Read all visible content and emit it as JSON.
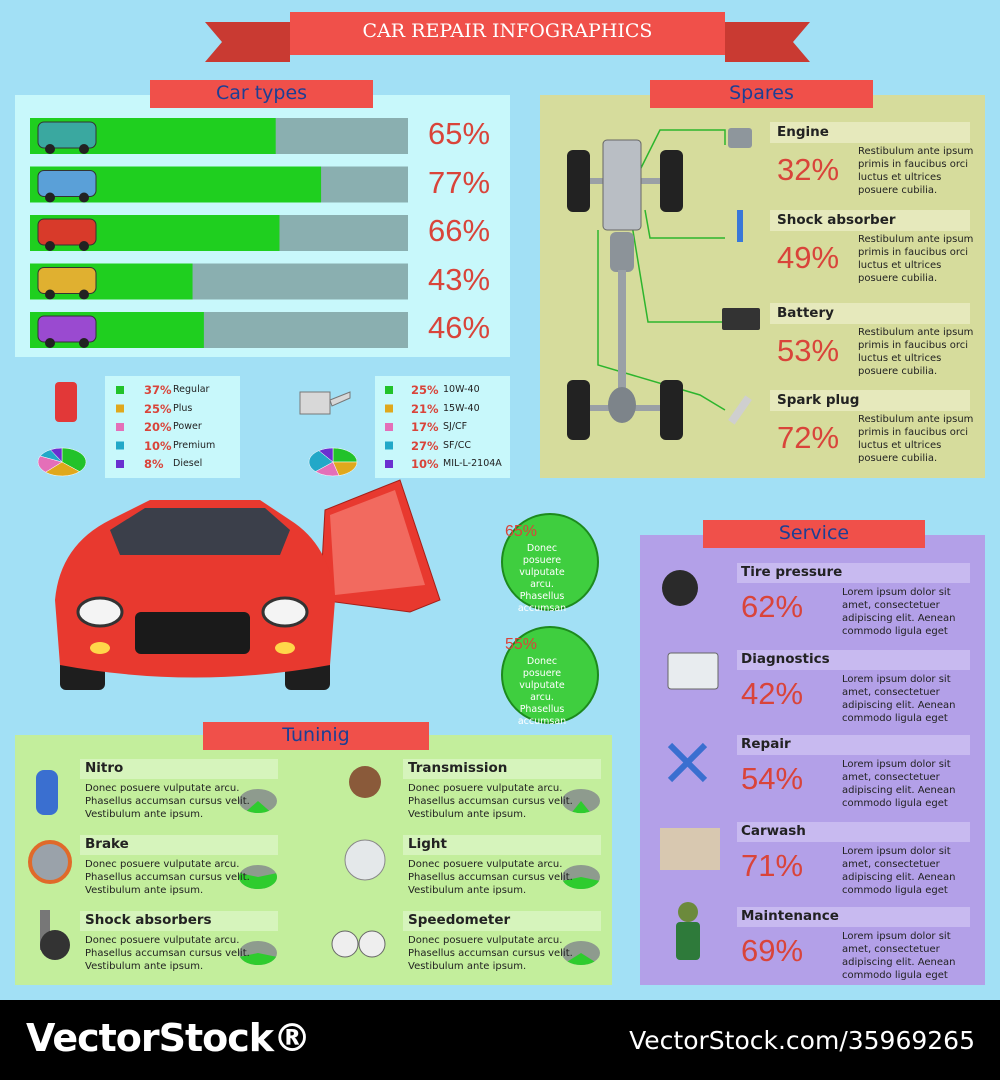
{
  "title": "CAR REPAIR INFOGRAPHICS",
  "car_types": {
    "heading": "Car types",
    "bar_color": "#1fcf1f",
    "track_color": "#8aafb0",
    "bars": [
      {
        "value": 65,
        "label": "65%"
      },
      {
        "value": 77,
        "label": "77%"
      },
      {
        "value": 66,
        "label": "66%"
      },
      {
        "value": 43,
        "label": "43%"
      },
      {
        "value": 46,
        "label": "46%"
      }
    ]
  },
  "fuel": {
    "items": [
      {
        "value": 37,
        "label": "37%",
        "name": "Regular",
        "color": "#22c22a"
      },
      {
        "value": 25,
        "label": "25%",
        "name": "Plus",
        "color": "#e0a81c"
      },
      {
        "value": 20,
        "label": "20%",
        "name": "Power",
        "color": "#e46fb8"
      },
      {
        "value": 10,
        "label": "10%",
        "name": "Premium",
        "color": "#22a8c8"
      },
      {
        "value": 8,
        "label": "8%",
        "name": "Diesel",
        "color": "#6a2fd0"
      }
    ]
  },
  "oil": {
    "items": [
      {
        "value": 25,
        "label": "25%",
        "name": "10W-40",
        "color": "#22c22a"
      },
      {
        "value": 21,
        "label": "21%",
        "name": "15W-40",
        "color": "#e0a81c"
      },
      {
        "value": 17,
        "label": "17%",
        "name": "SJ/CF",
        "color": "#e46fb8"
      },
      {
        "value": 27,
        "label": "27%",
        "name": "SF/CC",
        "color": "#22a8c8"
      },
      {
        "value": 10,
        "label": "10%",
        "name": "MIL-L-2104A",
        "color": "#6a2fd0"
      }
    ]
  },
  "spares": {
    "heading": "Spares",
    "items": [
      {
        "name": "Engine",
        "percent": "32%",
        "text": "Restibulum ante ipsum primis in faucibus orci luctus et ultrices posuere cubilia."
      },
      {
        "name": "Shock absorber",
        "percent": "49%",
        "text": "Restibulum ante ipsum primis in faucibus orci luctus et ultrices posuere cubilia."
      },
      {
        "name": "Battery",
        "percent": "53%",
        "text": "Restibulum ante ipsum primis in faucibus orci luctus et ultrices posuere cubilia."
      },
      {
        "name": "Spark plug",
        "percent": "72%",
        "text": "Restibulum ante ipsum primis in faucibus orci luctus et ultrices posuere cubilia."
      }
    ]
  },
  "callouts": [
    {
      "percent": "65%",
      "text": "Donec posuere vulputate arcu. Phasellus accumsan"
    },
    {
      "percent": "55%",
      "text": "Donec posuere vulputate arcu. Phasellus accumsan"
    }
  ],
  "service": {
    "heading": "Service",
    "items": [
      {
        "name": "Tire pressure",
        "percent": "62%",
        "text": "Lorem ipsum dolor sit amet, consectetuer adipiscing elit. Aenean commodo ligula eget"
      },
      {
        "name": "Diagnostics",
        "percent": "42%",
        "text": "Lorem ipsum dolor sit amet, consectetuer adipiscing elit. Aenean commodo ligula eget"
      },
      {
        "name": "Repair",
        "percent": "54%",
        "text": "Lorem ipsum dolor sit amet, consectetuer adipiscing elit. Aenean commodo ligula eget"
      },
      {
        "name": "Carwash",
        "percent": "71%",
        "text": "Lorem ipsum dolor sit amet, consectetuer adipiscing elit. Aenean commodo ligula eget"
      },
      {
        "name": "Maintenance",
        "percent": "69%",
        "text": "Lorem ipsum dolor sit amet, consectetuer adipiscing elit. Aenean commodo ligula eget"
      }
    ]
  },
  "tuning": {
    "heading": "Tuninig",
    "pie_color": "#2ecc2e",
    "items": [
      {
        "name": "Nitro",
        "text": "Donec posuere vulputate arcu. Phasellus accumsan cursus velit. Vestibulum ante ipsum.",
        "share": 20
      },
      {
        "name": "Transmission",
        "text": "Donec posuere vulputate arcu. Phasellus accumsan cursus velit. Vestibulum ante ipsum.",
        "share": 15
      },
      {
        "name": "Brake",
        "text": "Donec posuere vulputate arcu. Phasellus accumsan cursus velit. Vestibulum ante ipsum.",
        "share": 60
      },
      {
        "name": "Light",
        "text": "Donec posuere vulputate arcu. Phasellus accumsan cursus velit. Vestibulum ante ipsum.",
        "share": 40
      },
      {
        "name": "Shock absorbers",
        "text": "Donec posuere vulputate arcu. Phasellus accumsan cursus velit. Vestibulum ante ipsum.",
        "share": 40
      },
      {
        "name": "Speedometer",
        "text": "Donec posuere vulputate arcu. Phasellus accumsan cursus velit. Vestibulum ante ipsum.",
        "share": 25
      }
    ]
  },
  "footer": {
    "brand": "VectorStock®",
    "url": "VectorStock.com/35969265"
  }
}
